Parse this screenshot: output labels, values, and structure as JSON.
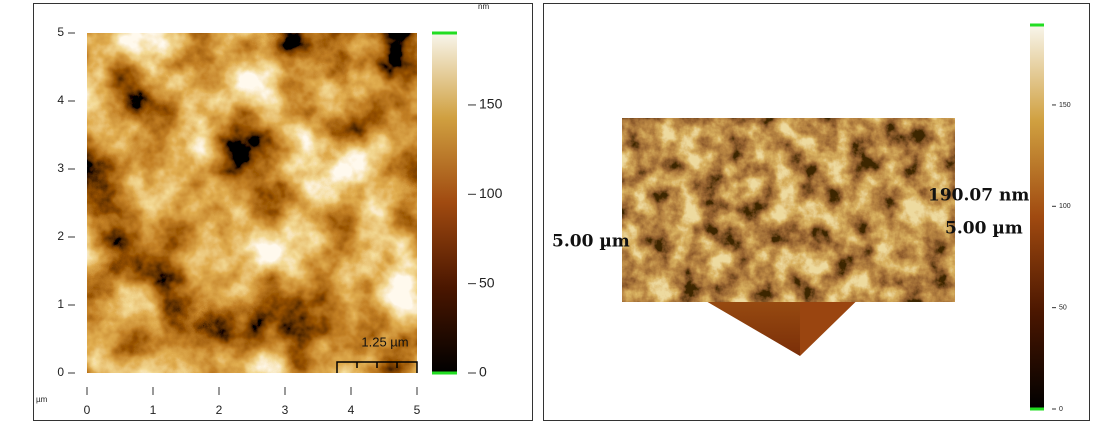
{
  "panel_2d": {
    "y_ticks": [
      0,
      1,
      2,
      3,
      4,
      5
    ],
    "x_ticks": [
      0,
      1,
      2,
      3,
      4,
      5
    ],
    "axis_unit": "µm",
    "colorbar": {
      "unit": "nm",
      "ticks": [
        0,
        50,
        100,
        150
      ]
    },
    "scale_bar": "1.25 µm"
  },
  "panel_3d": {
    "x_extent_label": "5.00 µm",
    "y_extent_label": "5.00 µm",
    "height_label": "190.07 nm",
    "colorbar": {
      "ticks": [
        0,
        50,
        100,
        150
      ]
    }
  }
}
